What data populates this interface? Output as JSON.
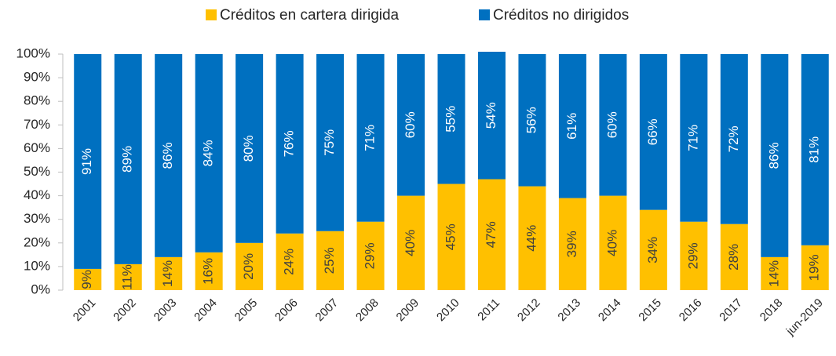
{
  "chart_data": {
    "type": "stacked_bar",
    "categories": [
      "2001",
      "2002",
      "2003",
      "2004",
      "2005",
      "2006",
      "2007",
      "2008",
      "2009",
      "2010",
      "2011",
      "2012",
      "2013",
      "2014",
      "2015",
      "2016",
      "2017",
      "2018",
      "jun-2019"
    ],
    "series": [
      {
        "name": "Créditos en cartera dirigida",
        "color": "#FFC000",
        "label_color": "#404040",
        "values": [
          9,
          11,
          14,
          16,
          20,
          24,
          25,
          29,
          40,
          45,
          47,
          44,
          39,
          40,
          34,
          29,
          28,
          14,
          19
        ],
        "value_labels": [
          "9%",
          "11%",
          "14%",
          "16%",
          "20%",
          "24%",
          "25%",
          "29%",
          "40%",
          "45%",
          "47%",
          "44%",
          "39%",
          "40%",
          "34%",
          "29%",
          "28%",
          "14%",
          "19%"
        ]
      },
      {
        "name": "Créditos no dirigidos",
        "color": "#0070C0",
        "label_color": "#ffffff",
        "values": [
          91,
          89,
          86,
          84,
          80,
          76,
          75,
          71,
          60,
          55,
          54,
          56,
          61,
          60,
          66,
          71,
          72,
          86,
          81
        ],
        "value_labels": [
          "91%",
          "89%",
          "86%",
          "84%",
          "80%",
          "76%",
          "75%",
          "71%",
          "60%",
          "55%",
          "54%",
          "56%",
          "61%",
          "60%",
          "66%",
          "71%",
          "72%",
          "86%",
          "81%"
        ]
      }
    ],
    "ylim": [
      0,
      100
    ],
    "yticks": [
      {
        "value": 0,
        "label": "0%"
      },
      {
        "value": 10,
        "label": "10%"
      },
      {
        "value": 20,
        "label": "20%"
      },
      {
        "value": 30,
        "label": "30%"
      },
      {
        "value": 40,
        "label": "40%"
      },
      {
        "value": 50,
        "label": "50%"
      },
      {
        "value": 60,
        "label": "60%"
      },
      {
        "value": 70,
        "label": "70%"
      },
      {
        "value": 80,
        "label": "80%"
      },
      {
        "value": 90,
        "label": "90%"
      },
      {
        "value": 100,
        "label": "100%"
      }
    ],
    "grid": false,
    "legend": "top"
  }
}
